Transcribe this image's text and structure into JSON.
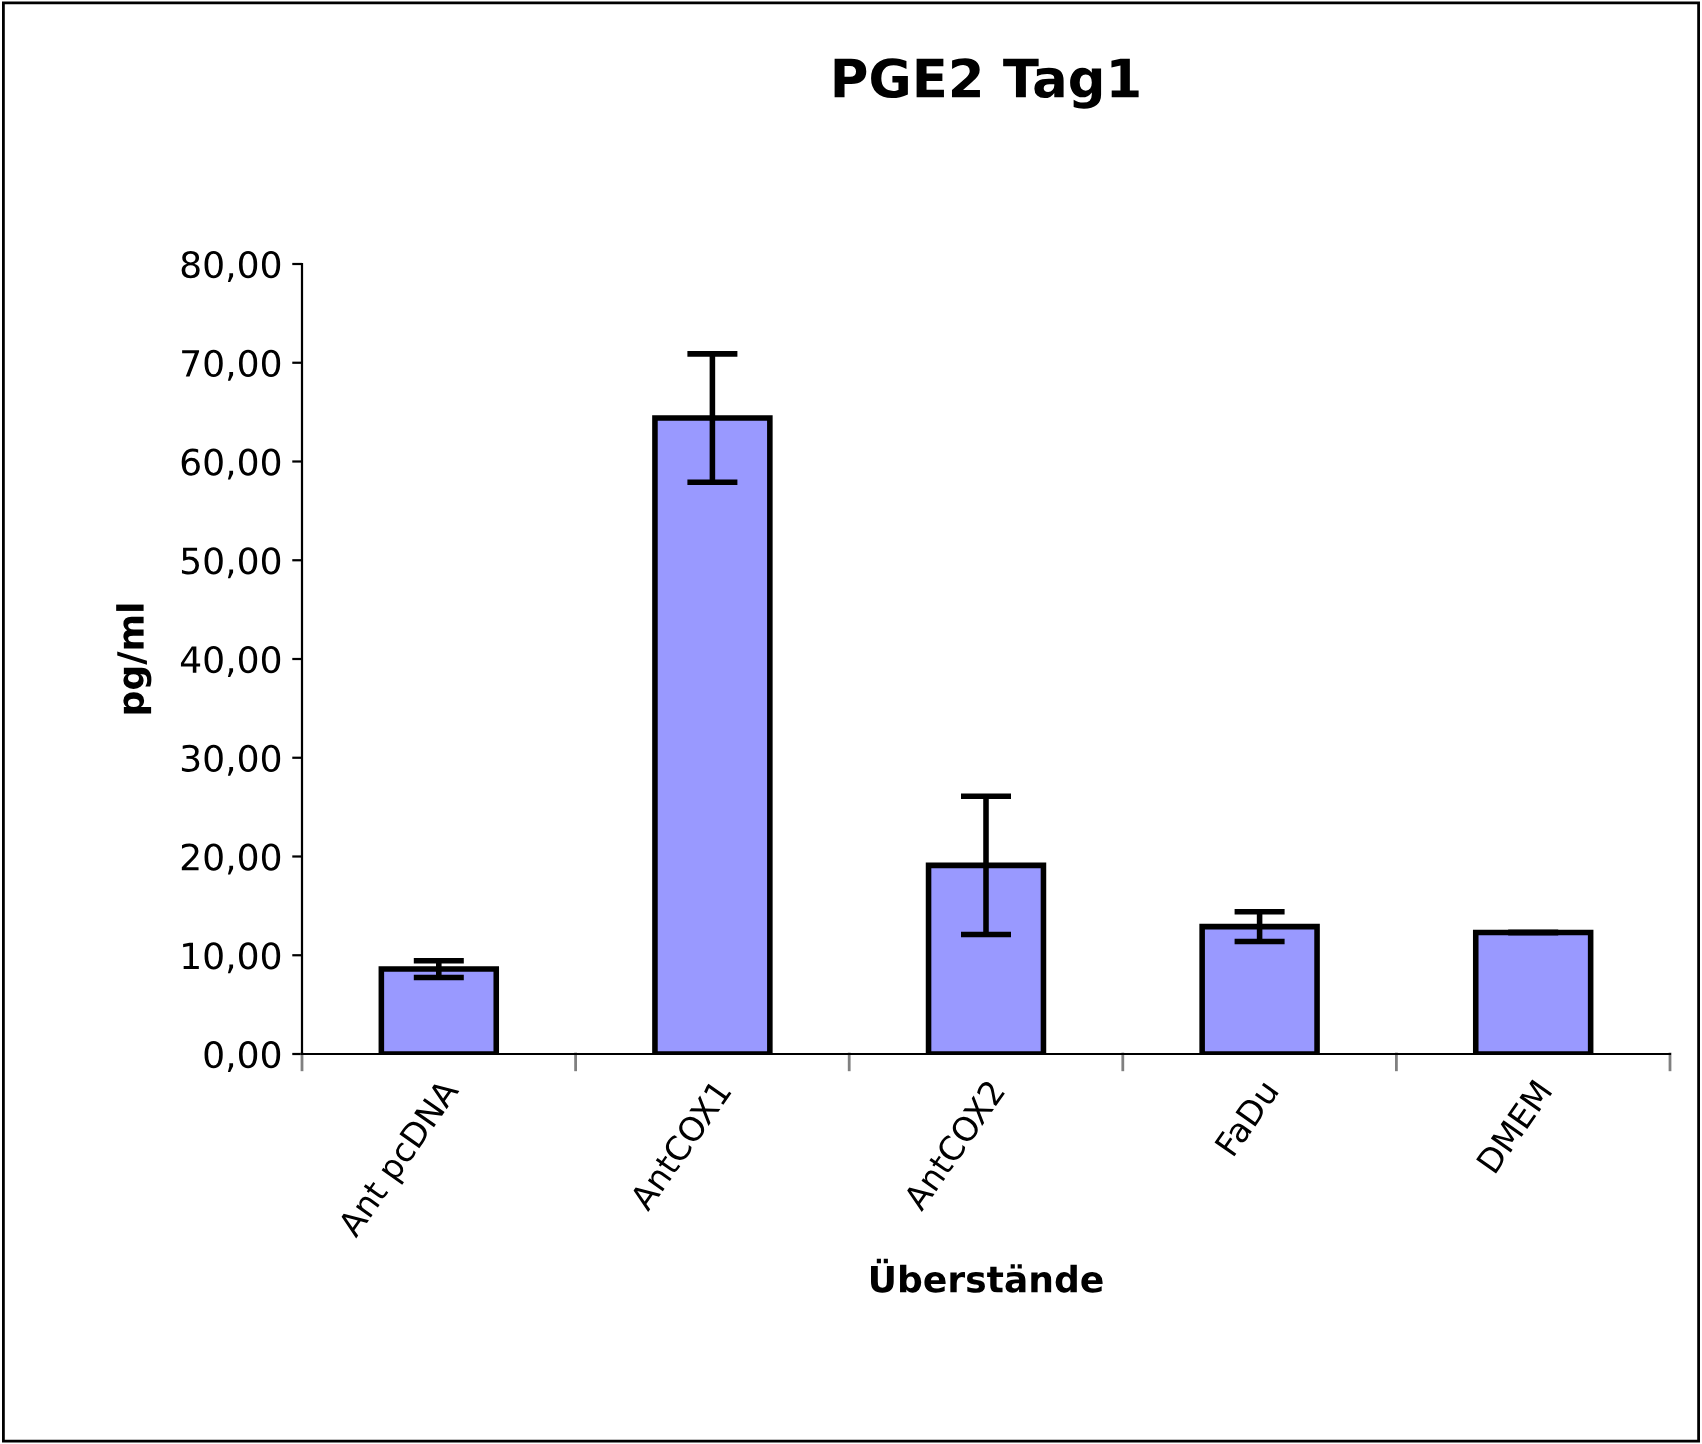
{
  "chart_data": {
    "type": "bar",
    "title": "PGE2 Tag1",
    "xlabel": "Überstände",
    "ylabel": "pg/ml",
    "categories": [
      "Ant pcDNA",
      "AntCOX1",
      "AntCOX2",
      "FaDu",
      "DMEM"
    ],
    "values": [
      8.6,
      64.4,
      19.1,
      12.9,
      12.3
    ],
    "errors": [
      0.85,
      6.5,
      7.0,
      1.5,
      null
    ],
    "color": "#9999ff",
    "ylim": [
      0,
      80
    ],
    "yticks": [
      {
        "value": 0,
        "label": "0,00"
      },
      {
        "value": 10,
        "label": "10,00"
      },
      {
        "value": 20,
        "label": "20,00"
      },
      {
        "value": 30,
        "label": "30,00"
      },
      {
        "value": 40,
        "label": "40,00"
      },
      {
        "value": 50,
        "label": "50,00"
      },
      {
        "value": 60,
        "label": "60,00"
      },
      {
        "value": 70,
        "label": "70,00"
      },
      {
        "value": 80,
        "label": "80,00"
      }
    ],
    "grid": false,
    "legend": false
  }
}
